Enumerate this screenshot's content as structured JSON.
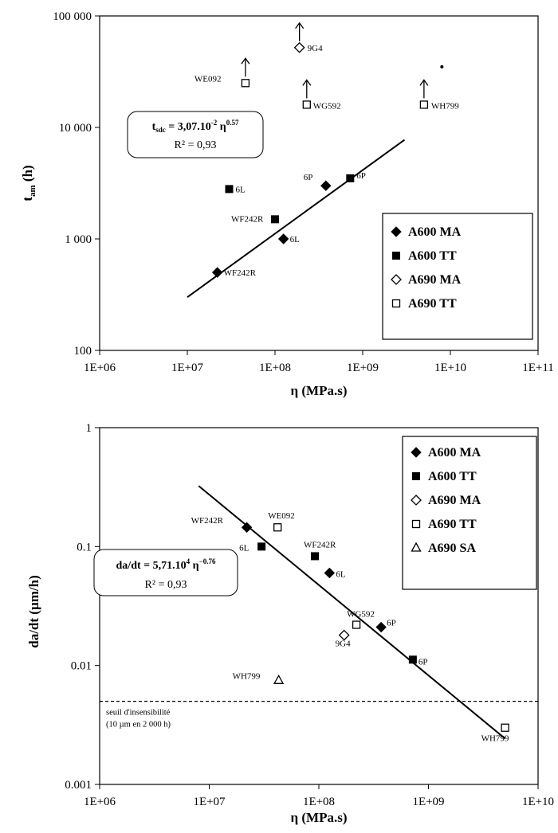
{
  "chart_data": [
    {
      "type": "scatter",
      "x_scale": "log",
      "y_scale": "log",
      "xlim": [
        1000000,
        100000000000
      ],
      "ylim": [
        100,
        100000
      ],
      "x_ticks": [
        "1E+06",
        "1E+07",
        "1E+08",
        "1E+09",
        "1E+10",
        "1E+11"
      ],
      "y_ticks": [
        "100",
        "1 000",
        "10 000",
        "100 000"
      ],
      "xlabel": "η (MPa.s)",
      "ylabel_main": "t",
      "ylabel_sub": "am",
      "ylabel_unit": "(h)",
      "legend_position": "right",
      "series": [
        {
          "name": "A600 MA",
          "marker": "diamond-filled",
          "points": [
            {
              "x": 22000000,
              "y": 500,
              "label": "WF242R"
            },
            {
              "x": 125000000,
              "y": 1000,
              "label": "6L"
            },
            {
              "x": 380000000,
              "y": 3000,
              "label": "6P"
            }
          ]
        },
        {
          "name": "A600 TT",
          "marker": "square-filled",
          "points": [
            {
              "x": 30000000,
              "y": 2800,
              "label": "6L"
            },
            {
              "x": 100000000,
              "y": 1500,
              "label": "WF242R"
            },
            {
              "x": 720000000,
              "y": 3500,
              "label": "6P"
            }
          ]
        },
        {
          "name": "A690 MA",
          "marker": "diamond-open",
          "points": [
            {
              "x": 190000000,
              "y": 52000,
              "label": "9G4",
              "arrow": true
            }
          ]
        },
        {
          "name": "A690 TT",
          "marker": "square-open",
          "points": [
            {
              "x": 46000000,
              "y": 25000,
              "label": "WE092",
              "arrow": true
            },
            {
              "x": 230000000,
              "y": 16000,
              "label": "WG592",
              "arrow": true
            },
            {
              "x": 5000000000,
              "y": 16000,
              "label": "WH799",
              "arrow": true
            }
          ]
        }
      ],
      "fit": {
        "x_range": [
          10000000,
          3000000000
        ],
        "coef": 0.0307,
        "exponent": 0.57,
        "eq_main": "t",
        "eq_sub": "sdc",
        "eq_mid": " = 3,07.10",
        "eq_exp1": "-2",
        "eq_eta": " η",
        "eq_exp2": "0.57",
        "r2": "R² = 0,93"
      },
      "stray_dot": {
        "x": 8000000000,
        "y": 35000
      }
    },
    {
      "type": "scatter",
      "x_scale": "log",
      "y_scale": "log",
      "xlim": [
        1000000,
        10000000000
      ],
      "ylim": [
        0.001,
        1
      ],
      "x_ticks": [
        "1E+06",
        "1E+07",
        "1E+08",
        "1E+09",
        "1E+10"
      ],
      "y_ticks": [
        "0.001",
        "0.01",
        "0.1",
        "1"
      ],
      "xlabel": "η (MPa.s)",
      "ylabel": "da/dt (µm/h)",
      "legend_position": "top-right",
      "series": [
        {
          "name": "A600 MA",
          "marker": "diamond-filled",
          "points": [
            {
              "x": 22000000,
              "y": 0.145,
              "label": "WF242R"
            },
            {
              "x": 125000000,
              "y": 0.06,
              "label": "6L"
            },
            {
              "x": 370000000,
              "y": 0.021,
              "label": "6P"
            }
          ]
        },
        {
          "name": "A600 TT",
          "marker": "square-filled",
          "points": [
            {
              "x": 30000000,
              "y": 0.1,
              "label": "6L"
            },
            {
              "x": 92000000,
              "y": 0.083,
              "label": "WF242R"
            },
            {
              "x": 720000000,
              "y": 0.0112,
              "label": "6P"
            }
          ]
        },
        {
          "name": "A690 MA",
          "marker": "diamond-open",
          "points": [
            {
              "x": 170000000,
              "y": 0.018,
              "label": "9G4"
            }
          ]
        },
        {
          "name": "A690 TT",
          "marker": "square-open",
          "points": [
            {
              "x": 42000000,
              "y": 0.145,
              "label": "WE092"
            },
            {
              "x": 220000000,
              "y": 0.022,
              "label": "WG592"
            },
            {
              "x": 5000000000,
              "y": 0.003,
              "label": "WH799"
            }
          ]
        },
        {
          "name": "A690 SA",
          "marker": "triangle-open",
          "points": [
            {
              "x": 43000000,
              "y": 0.0075,
              "label": "WH799"
            }
          ]
        }
      ],
      "fit": {
        "x_range": [
          8000000,
          5000000000
        ],
        "coef": 57100,
        "exponent": -0.76,
        "eq_main": "da/dt = 5,71.10",
        "eq_exp1": "4",
        "eq_eta": " η",
        "eq_exp2": "−0.76",
        "r2": "R² = 0,93"
      },
      "threshold": {
        "y": 0.005,
        "line1": "seuil d'insensibilité",
        "line2": "(10 µm en 2 000 h)"
      }
    }
  ]
}
